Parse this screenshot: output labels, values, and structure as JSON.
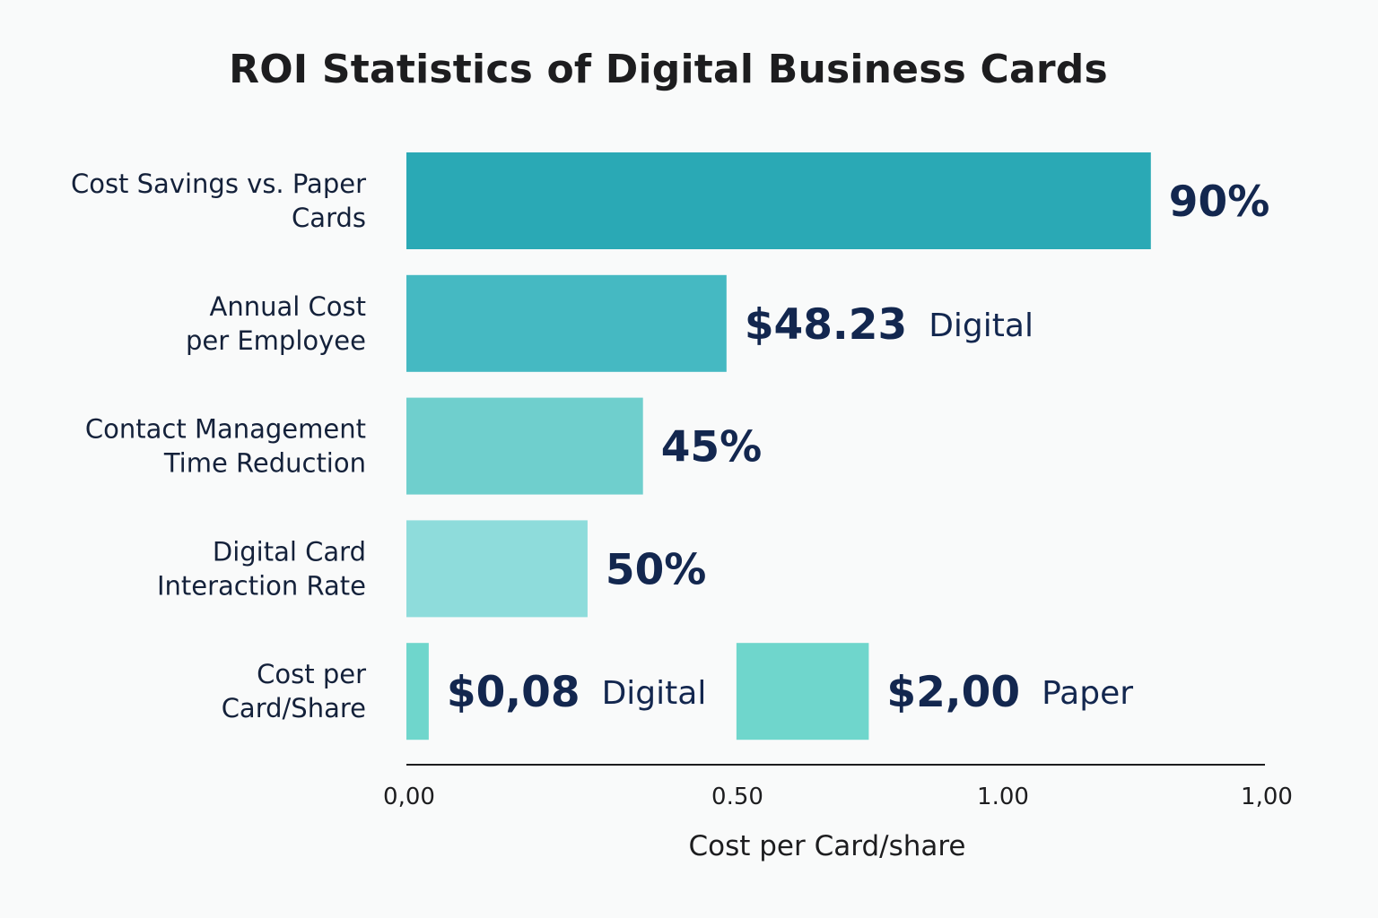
{
  "chart_data": {
    "type": "bar",
    "orientation": "horizontal",
    "title": "ROI Statistics of Digital Business Cards",
    "xlabel": "Cost per Card/share",
    "x_ticks": [
      "0,00",
      "0.50",
      "1.00",
      "1,00"
    ],
    "categories": [
      {
        "label_lines": [
          "Cost Savings vs. Paper",
          "Cards"
        ],
        "bars": [
          {
            "value": 0.9,
            "label": "90%",
            "suffix": "",
            "color": "#2aa9b5"
          }
        ]
      },
      {
        "label_lines": [
          "Annual Cost",
          "per Employee"
        ],
        "bars": [
          {
            "value": 0.387,
            "label": "$48.23",
            "suffix": "Digital",
            "color": "#45b9c2"
          }
        ]
      },
      {
        "label_lines": [
          "Contact Management",
          "Time Reduction"
        ],
        "bars": [
          {
            "value": 0.286,
            "label": "45%",
            "suffix": "",
            "color": "#6fcfcd"
          }
        ]
      },
      {
        "label_lines": [
          "Digital Card",
          "Interaction Rate"
        ],
        "bars": [
          {
            "value": 0.219,
            "label": "50%",
            "suffix": "",
            "color": "#8edcdb"
          }
        ]
      },
      {
        "label_lines": [
          "Cost per",
          "Card/Share"
        ],
        "bars": [
          {
            "value": 0.027,
            "label": "$0,08",
            "suffix": "Digital",
            "color": "#6fd6cc"
          },
          {
            "value": 0.16,
            "start": 0.399,
            "label": "$2,00",
            "suffix": "Paper",
            "color": "#6fd6cc"
          }
        ]
      }
    ],
    "colors": {
      "value_text": "#13274f",
      "axis": "#1d1d1f"
    }
  }
}
